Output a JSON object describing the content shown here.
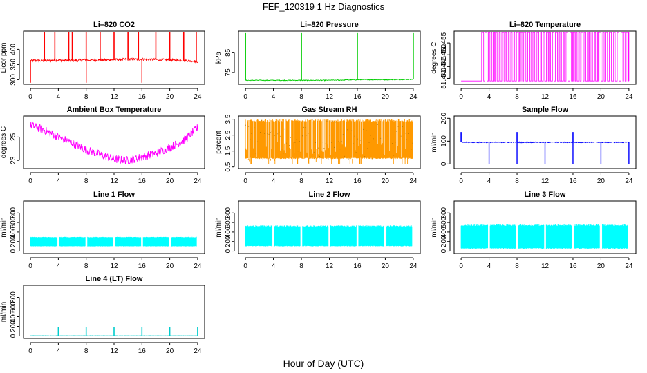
{
  "figure": {
    "title": "FEF_120319  1 Hz Diagnostics",
    "xlabel": "Hour of Day (UTC)"
  },
  "chart_data": [
    {
      "type": "line",
      "title": "Li–820 CO2",
      "ylabel": "Licor ppm",
      "color": "#ff0000",
      "xlim": [
        -1,
        25
      ],
      "ylim": [
        285,
        460
      ],
      "xticks": [
        "0",
        "4",
        "8",
        "12",
        "16",
        "20",
        "24"
      ],
      "yticks": [
        "300",
        "350",
        "400"
      ],
      "x": [
        0,
        2,
        4,
        6,
        8,
        10,
        12,
        14,
        16,
        18,
        20,
        22,
        24
      ],
      "values": [
        363,
        362,
        364,
        363,
        365,
        364,
        366,
        367,
        367,
        366,
        365,
        364,
        360
      ],
      "spikes_high": [
        2,
        3.5,
        5.5,
        6,
        8,
        10,
        12,
        14,
        15.5,
        18,
        20,
        22,
        23.8
      ],
      "spike_high_value": 460,
      "spikes_low": [
        0,
        8,
        16
      ],
      "spike_low_value": 290,
      "noise": 4
    },
    {
      "type": "line",
      "title": "Li–820 Pressure",
      "ylabel": "kPa",
      "color": "#00cc00",
      "xlim": [
        -1,
        25
      ],
      "ylim": [
        69,
        96
      ],
      "xticks": [
        "0",
        "4",
        "8",
        "12",
        "16",
        "20",
        "24"
      ],
      "yticks": [
        "75",
        "85"
      ],
      "x": [
        0,
        4,
        8,
        12,
        16,
        20,
        24
      ],
      "values": [
        71,
        71,
        71,
        71,
        71.3,
        71.3,
        71.5
      ],
      "spikes_high": [
        0,
        8,
        16,
        24
      ],
      "spike_high_value": 95,
      "noise": 0.2
    },
    {
      "type": "line",
      "title": "Li–820 Temperature",
      "ylabel": "degrees C",
      "color": "#ff00ff",
      "xlim": [
        -1,
        25
      ],
      "ylim": [
        51.4375,
        51.46
      ],
      "xticks": [
        "0",
        "4",
        "8",
        "12",
        "16",
        "20",
        "24"
      ],
      "yticks": [
        "51.440",
        "51.445",
        "51.450",
        "51.455"
      ],
      "toggle_levels": [
        51.4389,
        51.4594
      ],
      "toggle_start": 2.7,
      "toggle_end": 24
    },
    {
      "type": "line",
      "title": "Ambient Box Temperature",
      "ylabel": "degrees C",
      "color": "#ff00ff",
      "xlim": [
        -1,
        25
      ],
      "ylim": [
        22.3,
        26.8
      ],
      "xticks": [
        "0",
        "4",
        "8",
        "12",
        "16",
        "20",
        "24"
      ],
      "yticks": [
        "23",
        "25"
      ],
      "x": [
        0,
        2,
        4,
        6,
        8,
        10,
        12,
        14,
        16,
        18,
        20,
        22,
        24
      ],
      "values": [
        26.0,
        25.6,
        25.0,
        24.5,
        23.9,
        23.5,
        23.1,
        23.0,
        23.3,
        23.6,
        24.1,
        24.7,
        25.8
      ],
      "noise": 0.35
    },
    {
      "type": "line",
      "title": "Gas Stream RH",
      "ylabel": "percent",
      "color": "#ff9900",
      "xlim": [
        -1,
        25
      ],
      "ylim": [
        0.4,
        3.7
      ],
      "xticks": [
        "0",
        "4",
        "8",
        "12",
        "16",
        "20",
        "24"
      ],
      "yticks": [
        "0.5",
        "1.5",
        "2.5",
        "3.5"
      ],
      "band": [
        1.0,
        3.5
      ],
      "dip_low": 0.7
    },
    {
      "type": "line",
      "title": "Sample Flow",
      "ylabel": "ml/min",
      "color": "#0000ff",
      "xlim": [
        -1,
        25
      ],
      "ylim": [
        -20,
        210
      ],
      "xticks": [
        "0",
        "4",
        "8",
        "12",
        "16",
        "20",
        "24"
      ],
      "yticks": [
        "0",
        "100",
        "200"
      ],
      "x": [
        0,
        24
      ],
      "values": [
        95,
        95
      ],
      "noise": 2,
      "spikes_high": [
        0,
        8,
        16
      ],
      "spike_high_value": 140,
      "spikes_low": [
        4,
        8,
        12,
        16,
        20,
        24
      ],
      "spike_low_value": 0
    },
    {
      "type": "line",
      "title": "Line 1 Flow",
      "ylabel": "ml/min",
      "color": "#00ffff",
      "xlim": [
        -1,
        25
      ],
      "ylim": [
        -50,
        1050
      ],
      "xticks": [
        "0",
        "4",
        "8",
        "12",
        "16",
        "20",
        "24"
      ],
      "yticks": [
        "0",
        "200",
        "400",
        "600",
        "800"
      ],
      "band": [
        100,
        300
      ],
      "gaps": [
        4,
        8,
        12,
        16,
        20,
        24
      ]
    },
    {
      "type": "line",
      "title": "Line 2 Flow",
      "ylabel": "ml/min",
      "color": "#00ffff",
      "xlim": [
        -1,
        25
      ],
      "ylim": [
        -50,
        1050
      ],
      "xticks": [
        "0",
        "4",
        "8",
        "12",
        "16",
        "20",
        "24"
      ],
      "yticks": [
        "0",
        "200",
        "400",
        "600",
        "800"
      ],
      "band": [
        100,
        540
      ],
      "gaps": [
        4,
        8,
        12,
        16,
        20,
        24
      ]
    },
    {
      "type": "line",
      "title": "Line 3 Flow",
      "ylabel": "ml/min",
      "color": "#00ffff",
      "xlim": [
        -1,
        25
      ],
      "ylim": [
        -50,
        1050
      ],
      "xticks": [
        "0",
        "4",
        "8",
        "12",
        "16",
        "20",
        "24"
      ],
      "yticks": [
        "0",
        "200",
        "400",
        "600",
        "800"
      ],
      "band": [
        50,
        560
      ],
      "gaps": [
        4,
        8,
        12,
        16,
        20,
        24
      ]
    },
    {
      "type": "line",
      "title": "Line 4 (LT) Flow",
      "ylabel": "ml/min",
      "color": "#00cccc",
      "xlim": [
        -1,
        25
      ],
      "ylim": [
        -50,
        1050
      ],
      "xticks": [
        "0",
        "4",
        "8",
        "12",
        "16",
        "20",
        "24"
      ],
      "yticks": [
        "0",
        "200",
        "400",
        "600",
        "800"
      ],
      "x": [
        0,
        24
      ],
      "values": [
        5,
        5
      ],
      "noise": 2,
      "spikes_high": [
        4,
        8,
        12,
        16,
        20,
        24
      ],
      "spike_high_value": 190
    }
  ]
}
